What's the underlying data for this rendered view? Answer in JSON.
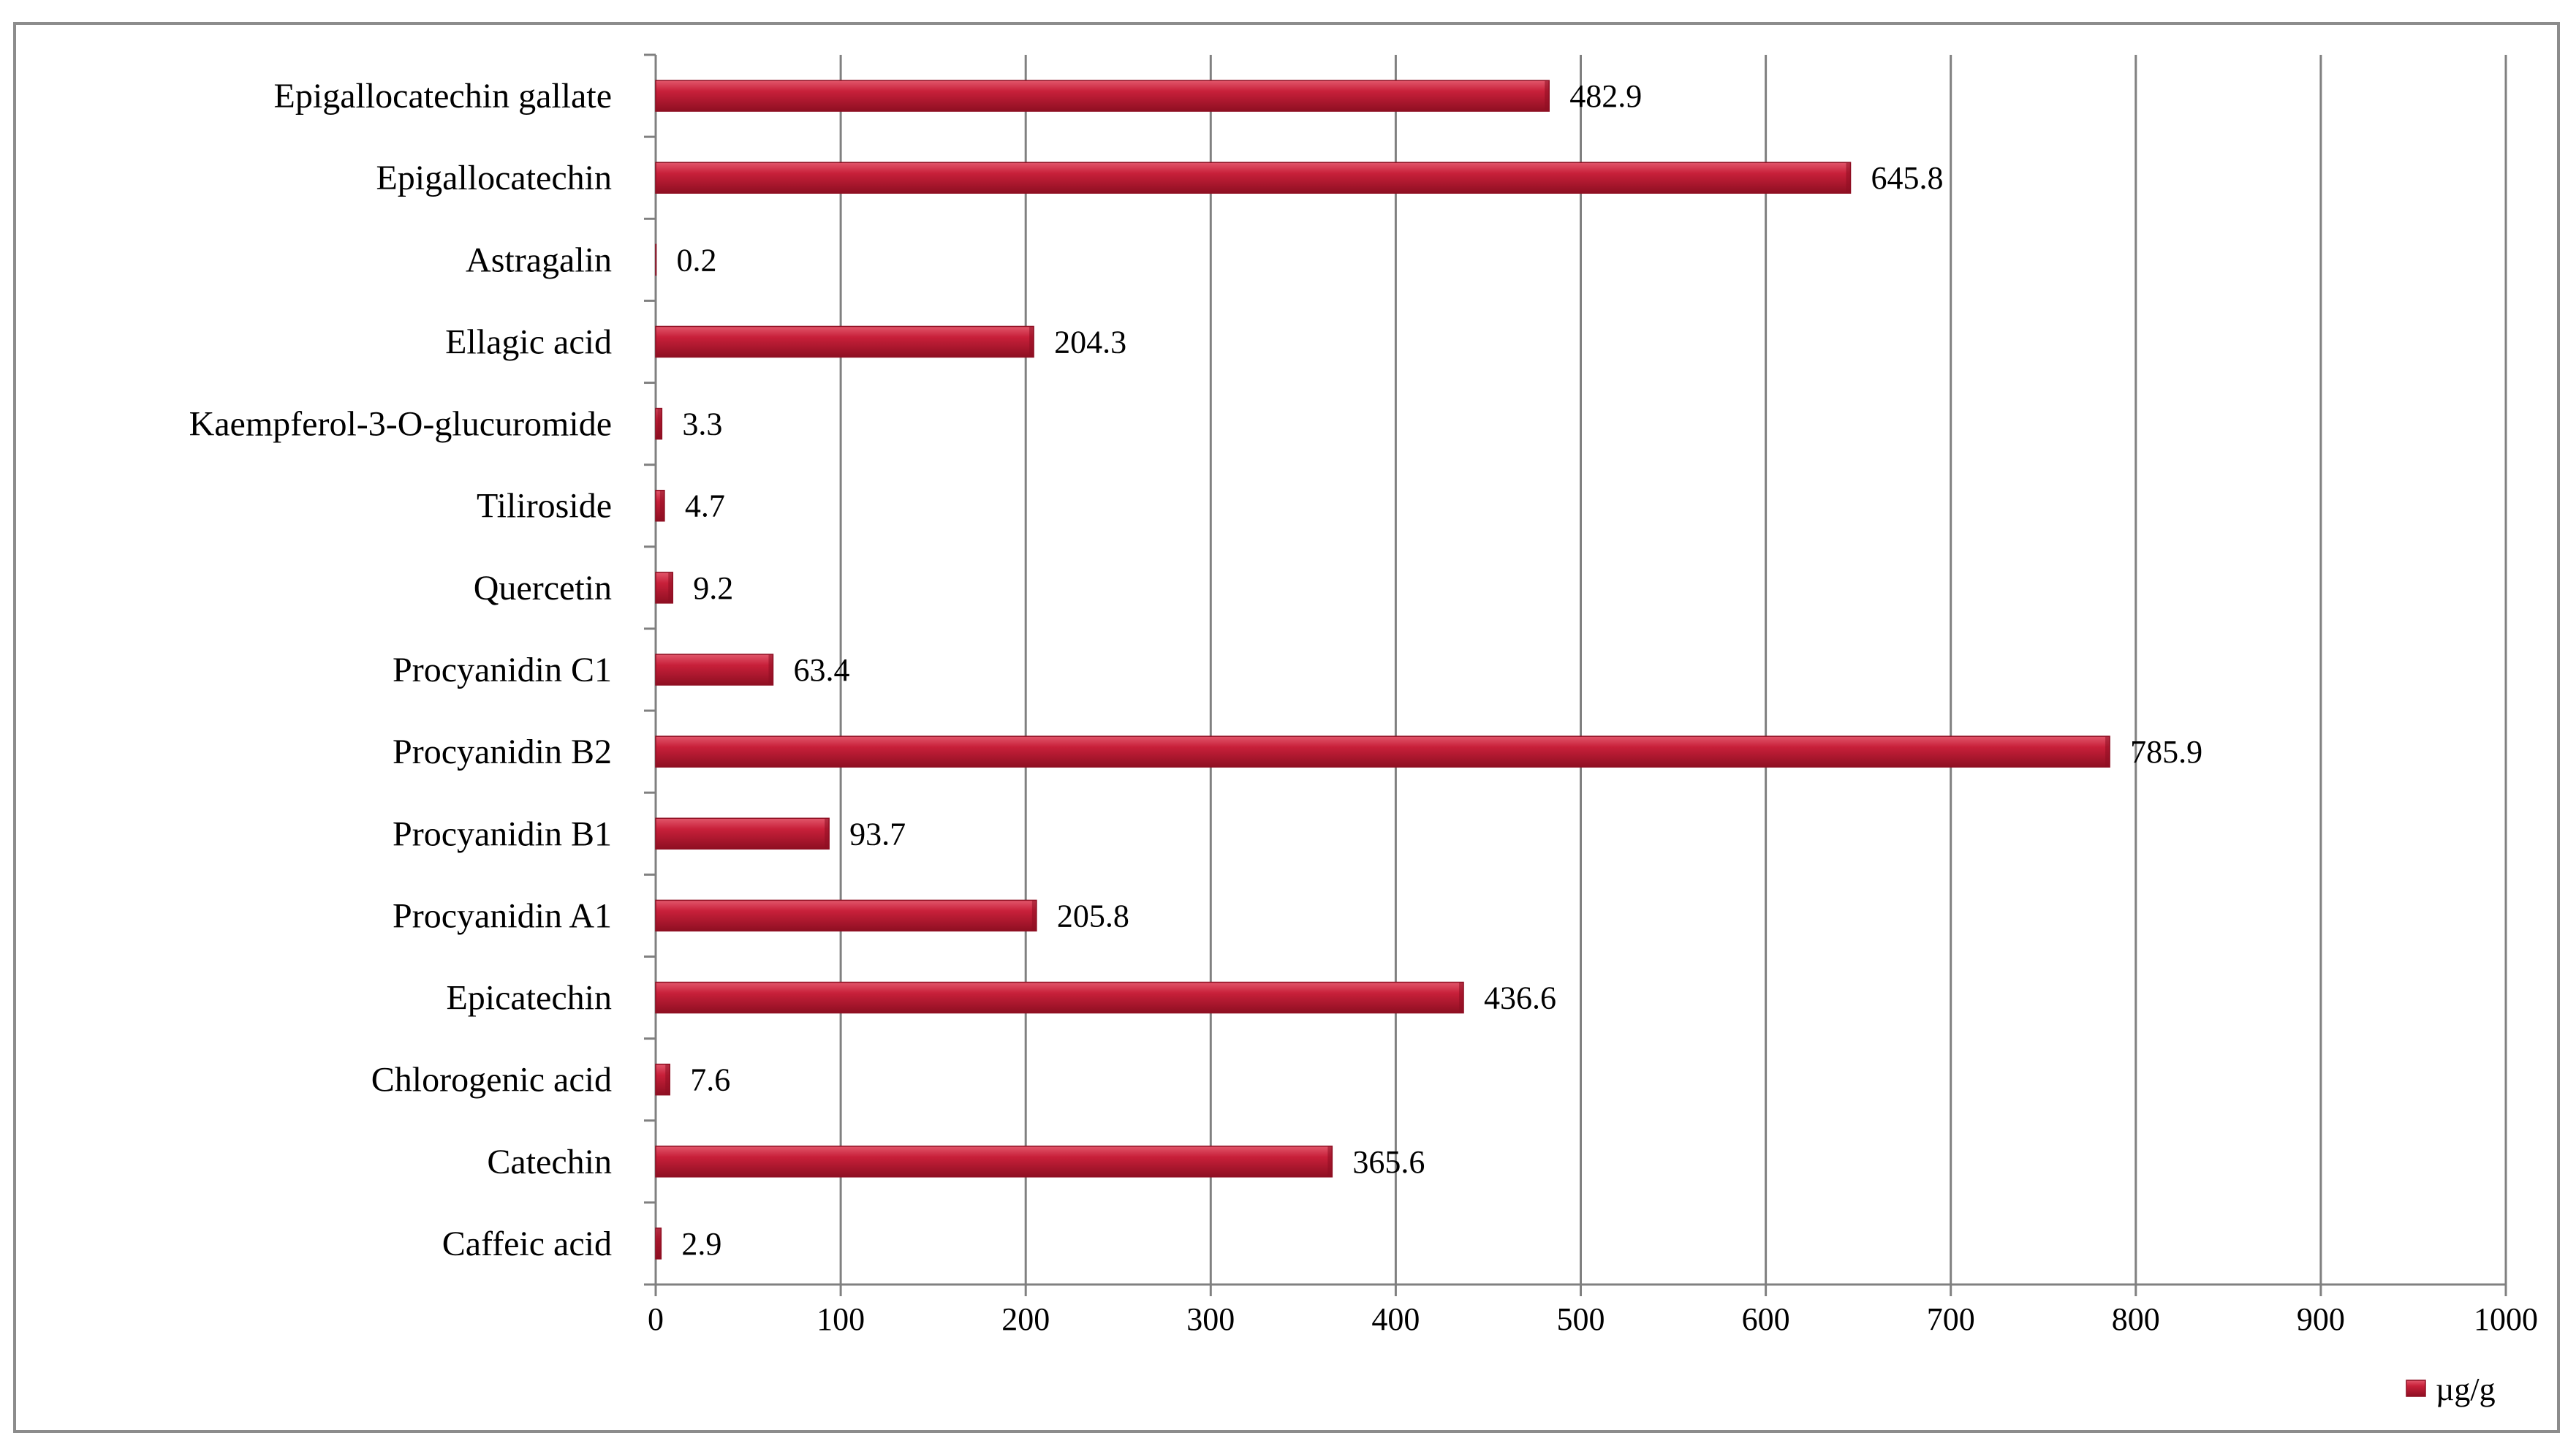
{
  "chart_data": {
    "type": "bar",
    "orientation": "horizontal",
    "categories": [
      "Caffeic acid",
      "Catechin",
      "Chlorogenic acid",
      "Epicatechin",
      "Procyanidin A1",
      "Procyanidin B1",
      "Procyanidin B2",
      "Procyanidin C1",
      "Quercetin",
      "Tiliroside",
      "Kaempferol-3-O-glucuromide",
      "Ellagic acid",
      "Astragalin",
      "Epigallocatechin",
      "Epigallocatechin gallate"
    ],
    "series": [
      {
        "name": "µg/g",
        "values": [
          2.9,
          365.6,
          7.6,
          436.6,
          205.8,
          93.7,
          785.9,
          63.4,
          9.2,
          4.7,
          3.3,
          204.3,
          0.2,
          645.8,
          482.9
        ],
        "value_labels": [
          "2.9",
          "365.6",
          "7.6",
          "436.6",
          "205.8",
          "93.7",
          "785.9",
          "63.4",
          "9.2",
          "4.7",
          "3.3",
          "204.3",
          "0.2",
          "645.8",
          "482.9"
        ]
      }
    ],
    "xlim": [
      0,
      1000
    ],
    "xticks": [
      0,
      100,
      200,
      300,
      400,
      500,
      600,
      700,
      800,
      900,
      1000
    ],
    "xtick_labels": [
      "0",
      "100",
      "200",
      "300",
      "400",
      "500",
      "600",
      "700",
      "800",
      "900",
      "1000"
    ],
    "grid": "vertical",
    "legend": "bottom-right",
    "colors": {
      "bar": "#c8203a",
      "bar_light": "#e2576b",
      "bar_dark": "#8e0f22",
      "grid": "#808080",
      "axis": "#808080"
    }
  }
}
